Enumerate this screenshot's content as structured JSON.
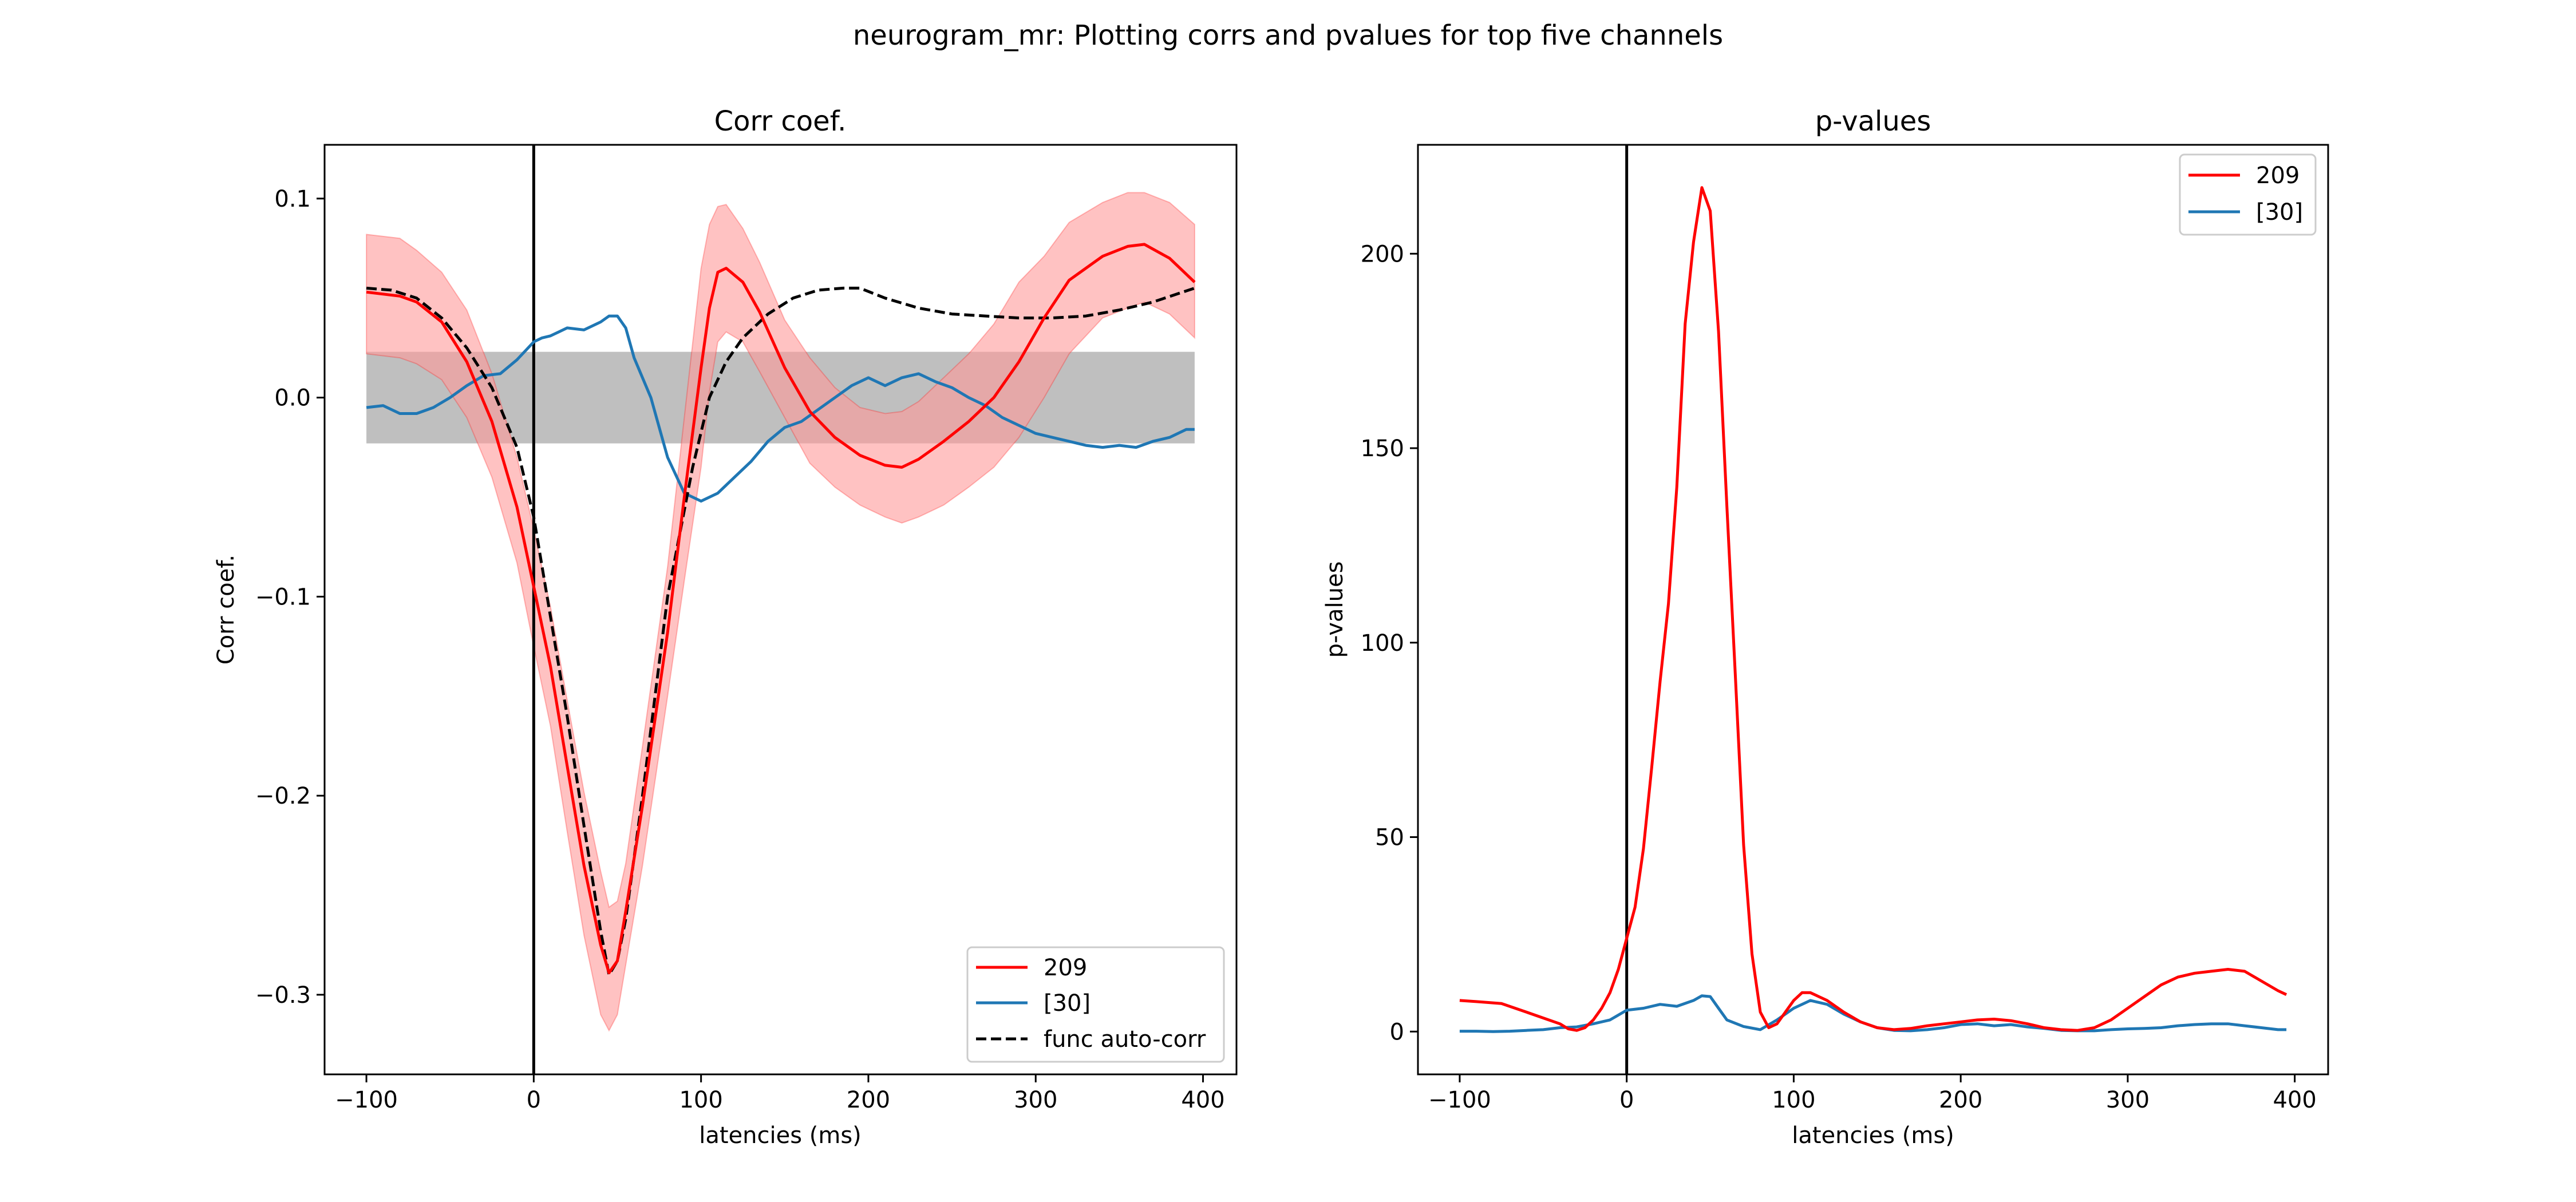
{
  "figure": {
    "suptitle": "neurogram_mr: Plotting corrs and pvalues for top five channels"
  },
  "colors": {
    "red": "#ff0000",
    "blue": "#1f77b4",
    "black": "#000000",
    "shade_red": "#ff9999",
    "shade_gray": "#808080"
  },
  "chart_data": [
    {
      "type": "line",
      "title": "Corr coef.",
      "xlabel": "latencies (ms)",
      "ylabel": "Corr coef.",
      "xlim": [
        -125,
        420
      ],
      "ylim": [
        -0.34,
        0.127
      ],
      "xticks": [
        -100,
        0,
        100,
        200,
        300,
        400
      ],
      "xtick_labels": [
        "−100",
        "0",
        "100",
        "200",
        "300",
        "400"
      ],
      "yticks": [
        0.1,
        0.0,
        -0.1,
        -0.2,
        -0.3
      ],
      "ytick_labels": [
        "0.1",
        "0.0",
        "−0.1",
        "−0.2",
        "−0.3"
      ],
      "grid": false,
      "legend": {
        "placement": "lower right",
        "entries": [
          "209",
          "[30]",
          "func auto-corr"
        ]
      },
      "vline_x": 0,
      "null_band": {
        "x": [
          -100,
          395
        ],
        "lower": -0.023,
        "upper": 0.023
      },
      "series": [
        {
          "name": "209",
          "color": "#ff0000",
          "style": "solid",
          "x": [
            -100,
            -80,
            -70,
            -55,
            -40,
            -25,
            -10,
            0,
            10,
            20,
            30,
            40,
            45,
            50,
            55,
            65,
            80,
            90,
            100,
            105,
            110,
            115,
            125,
            135,
            150,
            165,
            180,
            195,
            210,
            220,
            230,
            245,
            260,
            275,
            290,
            305,
            320,
            340,
            355,
            365,
            380,
            395
          ],
          "y": [
            0.053,
            0.051,
            0.048,
            0.038,
            0.018,
            -0.012,
            -0.055,
            -0.095,
            -0.135,
            -0.185,
            -0.235,
            -0.275,
            -0.289,
            -0.283,
            -0.258,
            -0.205,
            -0.118,
            -0.05,
            0.015,
            0.045,
            0.063,
            0.065,
            0.058,
            0.043,
            0.015,
            -0.007,
            -0.02,
            -0.029,
            -0.034,
            -0.035,
            -0.031,
            -0.022,
            -0.012,
            0.0,
            0.018,
            0.04,
            0.059,
            0.071,
            0.076,
            0.077,
            0.07,
            0.058
          ],
          "band_upper": [
            0.082,
            0.08,
            0.074,
            0.063,
            0.044,
            0.012,
            -0.03,
            -0.066,
            -0.105,
            -0.152,
            -0.198,
            -0.238,
            -0.256,
            -0.253,
            -0.234,
            -0.175,
            -0.085,
            -0.01,
            0.065,
            0.087,
            0.096,
            0.097,
            0.085,
            0.068,
            0.039,
            0.02,
            0.005,
            -0.005,
            -0.008,
            -0.007,
            -0.002,
            0.01,
            0.022,
            0.037,
            0.058,
            0.071,
            0.088,
            0.098,
            0.103,
            0.103,
            0.098,
            0.087
          ],
          "band_lower": [
            0.022,
            0.02,
            0.017,
            0.009,
            -0.01,
            -0.04,
            -0.083,
            -0.125,
            -0.165,
            -0.218,
            -0.27,
            -0.31,
            -0.318,
            -0.31,
            -0.285,
            -0.235,
            -0.15,
            -0.092,
            -0.035,
            0.003,
            0.028,
            0.033,
            0.028,
            0.013,
            -0.01,
            -0.033,
            -0.045,
            -0.054,
            -0.06,
            -0.063,
            -0.06,
            -0.054,
            -0.045,
            -0.035,
            -0.02,
            0.0,
            0.022,
            0.04,
            0.045,
            0.048,
            0.042,
            0.03
          ]
        },
        {
          "name": "[30]",
          "color": "#1f77b4",
          "style": "solid",
          "x": [
            -100,
            -90,
            -80,
            -70,
            -60,
            -50,
            -40,
            -30,
            -20,
            -10,
            0,
            5,
            10,
            15,
            20,
            30,
            40,
            45,
            50,
            55,
            60,
            70,
            80,
            90,
            100,
            110,
            120,
            130,
            140,
            150,
            160,
            170,
            180,
            190,
            200,
            210,
            220,
            230,
            240,
            250,
            260,
            270,
            280,
            290,
            300,
            310,
            320,
            330,
            340,
            350,
            360,
            370,
            380,
            390,
            395
          ],
          "y": [
            -0.005,
            -0.004,
            -0.008,
            -0.008,
            -0.005,
            0.0,
            0.006,
            0.011,
            0.012,
            0.019,
            0.028,
            0.03,
            0.031,
            0.033,
            0.035,
            0.034,
            0.038,
            0.041,
            0.041,
            0.035,
            0.02,
            0.0,
            -0.03,
            -0.048,
            -0.052,
            -0.048,
            -0.04,
            -0.032,
            -0.022,
            -0.015,
            -0.012,
            -0.006,
            0.0,
            0.006,
            0.01,
            0.006,
            0.01,
            0.012,
            0.008,
            0.005,
            0.0,
            -0.004,
            -0.01,
            -0.014,
            -0.018,
            -0.02,
            -0.022,
            -0.024,
            -0.025,
            -0.024,
            -0.025,
            -0.022,
            -0.02,
            -0.016,
            -0.016
          ]
        },
        {
          "name": "func auto-corr",
          "color": "#000000",
          "style": "dashed",
          "x": [
            -100,
            -85,
            -70,
            -55,
            -40,
            -25,
            -10,
            0,
            10,
            20,
            30,
            40,
            45,
            50,
            55,
            65,
            80,
            95,
            105,
            115,
            125,
            140,
            155,
            170,
            185,
            195,
            210,
            230,
            250,
            270,
            290,
            310,
            330,
            350,
            370,
            395
          ],
          "y": [
            0.055,
            0.054,
            0.05,
            0.04,
            0.025,
            0.005,
            -0.025,
            -0.06,
            -0.11,
            -0.16,
            -0.215,
            -0.268,
            -0.29,
            -0.283,
            -0.262,
            -0.2,
            -0.1,
            -0.035,
            0.0,
            0.018,
            0.03,
            0.042,
            0.05,
            0.054,
            0.055,
            0.055,
            0.05,
            0.045,
            0.042,
            0.041,
            0.04,
            0.04,
            0.041,
            0.044,
            0.048,
            0.055
          ]
        }
      ]
    },
    {
      "type": "line",
      "title": "p-values",
      "xlabel": "latencies (ms)",
      "ylabel": "p-values",
      "xlim": [
        -125,
        420
      ],
      "ylim": [
        -11,
        228
      ],
      "xticks": [
        -100,
        0,
        100,
        200,
        300,
        400
      ],
      "xtick_labels": [
        "−100",
        "0",
        "100",
        "200",
        "300",
        "400"
      ],
      "yticks": [
        0,
        50,
        100,
        150,
        200
      ],
      "ytick_labels": [
        "0",
        "50",
        "100",
        "150",
        "200"
      ],
      "grid": false,
      "legend": {
        "placement": "upper right",
        "entries": [
          "209",
          "[30]"
        ]
      },
      "vline_x": 0,
      "series": [
        {
          "name": "209",
          "color": "#ff0000",
          "style": "solid",
          "x": [
            -100,
            -90,
            -75,
            -60,
            -50,
            -40,
            -35,
            -30,
            -25,
            -20,
            -15,
            -10,
            -5,
            0,
            5,
            10,
            15,
            20,
            25,
            30,
            35,
            40,
            45,
            50,
            55,
            60,
            65,
            70,
            75,
            80,
            85,
            90,
            95,
            100,
            105,
            110,
            115,
            120,
            130,
            140,
            150,
            160,
            170,
            180,
            190,
            200,
            210,
            220,
            230,
            240,
            250,
            260,
            270,
            280,
            290,
            300,
            310,
            320,
            330,
            340,
            350,
            360,
            370,
            380,
            390,
            395
          ],
          "y": [
            8,
            7.7,
            7.2,
            5,
            3.5,
            2,
            0.7,
            0.3,
            1,
            3,
            6,
            10,
            16,
            24,
            32,
            47,
            68,
            90,
            110,
            140,
            182,
            203,
            217,
            211,
            180,
            135,
            92,
            48,
            20,
            5,
            1,
            2,
            5,
            8,
            10,
            10,
            9,
            8,
            5,
            2.5,
            1,
            0.5,
            0.8,
            1.5,
            2,
            2.5,
            3,
            3.2,
            2.8,
            2,
            1,
            0.5,
            0.3,
            1,
            3,
            6,
            9,
            12,
            14,
            15,
            15.5,
            16,
            15.5,
            13,
            10.5,
            9.5
          ]
        },
        {
          "name": "[30]",
          "color": "#1f77b4",
          "style": "solid",
          "x": [
            -100,
            -90,
            -80,
            -70,
            -60,
            -50,
            -40,
            -30,
            -20,
            -10,
            0,
            10,
            20,
            30,
            40,
            45,
            50,
            55,
            60,
            70,
            80,
            90,
            100,
            110,
            120,
            130,
            140,
            150,
            160,
            170,
            180,
            190,
            200,
            210,
            220,
            230,
            240,
            250,
            260,
            270,
            280,
            290,
            300,
            310,
            320,
            330,
            340,
            350,
            360,
            370,
            380,
            390,
            395
          ],
          "y": [
            0.1,
            0.1,
            0,
            0.1,
            0.3,
            0.5,
            1,
            1.2,
            2,
            3,
            5.5,
            6,
            7,
            6.5,
            8,
            9.2,
            9,
            6,
            3,
            1.3,
            0.5,
            3,
            6,
            8,
            7,
            4.5,
            2.5,
            1,
            0.3,
            0.2,
            0.5,
            1,
            1.8,
            2,
            1.5,
            1.8,
            1.2,
            0.8,
            0.3,
            0.2,
            0.2,
            0.5,
            0.7,
            0.8,
            1,
            1.5,
            1.8,
            2,
            2,
            1.5,
            1,
            0.5,
            0.5
          ]
        }
      ]
    }
  ]
}
